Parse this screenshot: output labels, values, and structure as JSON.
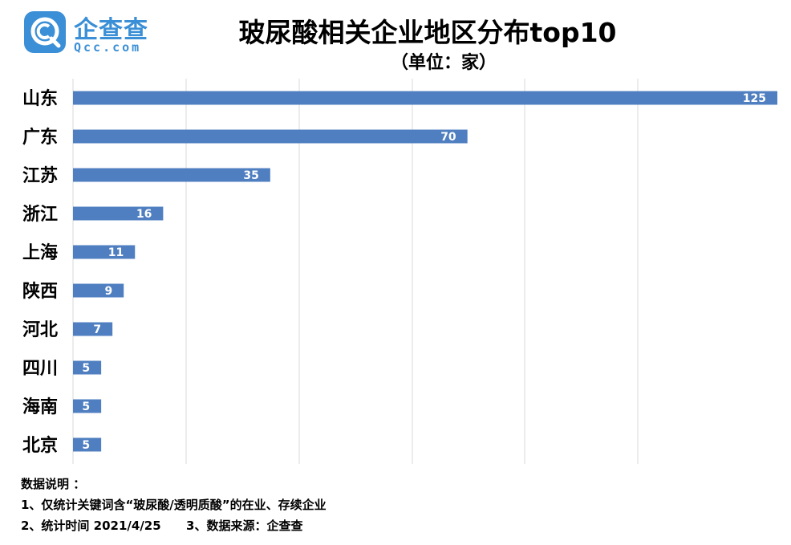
{
  "logo": {
    "name": "企查查",
    "domain": "Qcc.com",
    "mark_color": "#3a8fd6"
  },
  "title": "玻尿酸相关企业地区分布top10",
  "subtitle": "（单位：家）",
  "chart_data": {
    "type": "bar",
    "orientation": "horizontal",
    "title": "玻尿酸相关企业地区分布top10",
    "subtitle": "（单位：家）",
    "categories": [
      "山东",
      "广东",
      "江苏",
      "浙江",
      "上海",
      "陕西",
      "河北",
      "四川",
      "海南",
      "北京"
    ],
    "values": [
      125,
      70,
      35,
      16,
      11,
      9,
      7,
      5,
      5,
      5
    ],
    "xlim": [
      0,
      125
    ],
    "grid": "vertical",
    "data_labels": true,
    "bar_color": "#4f7fc0",
    "gridline_color": "#d9d9d9"
  },
  "notes": {
    "heading": "数据说明 ：",
    "line1": "1、仅统计关键词含“玻尿酸/透明质酸”的在业、存续企业",
    "line2": "2、统计时间 2021/4/25      3、数据来源：企查查"
  }
}
